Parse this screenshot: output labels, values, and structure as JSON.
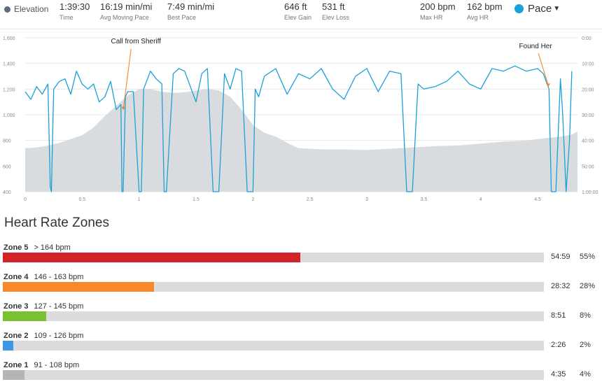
{
  "stats": {
    "elevation_label": "Elevation",
    "time_value": "1:39:30",
    "time_label": "Time",
    "avg_pace_value": "16:19 min/mi",
    "avg_pace_label": "Avg Moving Pace",
    "best_pace_value": "7:49 min/mi",
    "best_pace_label": "Best Pace",
    "elev_gain_value": "646 ft",
    "elev_gain_label": "Elev Gain",
    "elev_loss_value": "531 ft",
    "elev_loss_label": "Elev Loss",
    "max_hr_value": "200 bpm",
    "max_hr_label": "Max HR",
    "avg_hr_value": "162 bpm",
    "avg_hr_label": "Avg HR",
    "pace_selector": "Pace",
    "elevation_color": "#5b6b7c",
    "pace_color": "#1aa1d6"
  },
  "chart_data": {
    "type": "area",
    "x_ticks": [
      "0",
      "0.5",
      "1",
      "1.5",
      "2",
      "2.5",
      "3",
      "3.5",
      "4",
      "4.5"
    ],
    "xlim": [
      0,
      4.85
    ],
    "y_left_ticks": [
      "1,600",
      "1,400",
      "1,200",
      "1,000",
      "800",
      "600",
      "400"
    ],
    "ylim_left": [
      400,
      1600
    ],
    "y_right_ticks": [
      "0:00",
      "10:00",
      "20:00",
      "30:00",
      "40:00",
      "50:00",
      "1:00:00"
    ],
    "ylim_right_minutes": [
      0,
      60
    ],
    "grid": true,
    "elevation_series": {
      "name": "Elevation",
      "x": [
        0,
        0.1,
        0.2,
        0.3,
        0.4,
        0.5,
        0.6,
        0.7,
        0.8,
        0.9,
        1.0,
        1.1,
        1.2,
        1.3,
        1.4,
        1.5,
        1.6,
        1.7,
        1.8,
        1.9,
        2.0,
        2.1,
        2.2,
        2.3,
        2.4,
        2.6,
        2.8,
        3.0,
        3.2,
        3.4,
        3.6,
        3.8,
        4.0,
        4.2,
        4.4,
        4.6,
        4.7,
        4.8,
        4.85
      ],
      "y": [
        740,
        745,
        760,
        780,
        810,
        840,
        900,
        990,
        1070,
        1150,
        1200,
        1200,
        1180,
        1170,
        1175,
        1190,
        1200,
        1190,
        1140,
        1040,
        920,
        860,
        830,
        780,
        740,
        730,
        730,
        725,
        735,
        745,
        755,
        760,
        775,
        790,
        800,
        820,
        830,
        845,
        870
      ]
    },
    "pace_series": {
      "name": "Pace",
      "unit": "min/mi",
      "x": [
        0,
        0.05,
        0.1,
        0.15,
        0.2,
        0.22,
        0.23,
        0.25,
        0.3,
        0.35,
        0.4,
        0.45,
        0.5,
        0.55,
        0.6,
        0.65,
        0.7,
        0.75,
        0.8,
        0.82,
        0.84,
        0.85,
        0.86,
        0.88,
        0.9,
        0.95,
        1.0,
        1.02,
        1.04,
        1.1,
        1.15,
        1.2,
        1.22,
        1.24,
        1.3,
        1.35,
        1.4,
        1.45,
        1.5,
        1.55,
        1.6,
        1.65,
        1.7,
        1.75,
        1.8,
        1.85,
        1.9,
        1.95,
        1.98,
        2.0,
        2.02,
        2.05,
        2.1,
        2.2,
        2.3,
        2.4,
        2.5,
        2.6,
        2.7,
        2.8,
        2.9,
        3.0,
        3.1,
        3.2,
        3.3,
        3.35,
        3.4,
        3.45,
        3.5,
        3.6,
        3.7,
        3.8,
        3.9,
        4.0,
        4.1,
        4.2,
        4.3,
        4.4,
        4.5,
        4.55,
        4.6,
        4.62,
        4.64,
        4.66,
        4.7,
        4.72,
        4.75,
        4.78,
        4.8
      ],
      "y": [
        21,
        24,
        19,
        22,
        18,
        58,
        60,
        20,
        17,
        16,
        22,
        13,
        18,
        20,
        18,
        25,
        23,
        17,
        28,
        27,
        26,
        60,
        60,
        23,
        21,
        21,
        60,
        60,
        20,
        13,
        16,
        18,
        60,
        60,
        14,
        12,
        13,
        19,
        25,
        14,
        12,
        60,
        60,
        14,
        20,
        12,
        13,
        60,
        60,
        60,
        20,
        23,
        15,
        12,
        22,
        14,
        16,
        12,
        20,
        24,
        15,
        12,
        21,
        13,
        14,
        60,
        60,
        18,
        20,
        19,
        17,
        13,
        18,
        20,
        12,
        13,
        11,
        13,
        12,
        14,
        20,
        60,
        60,
        60,
        16,
        30,
        60,
        40,
        13
      ]
    },
    "annotations": [
      {
        "text": "Call from Sheriff",
        "x": 0.85,
        "pace": 29
      },
      {
        "text": "Found Her",
        "x": 4.58,
        "pace": 20
      }
    ]
  },
  "zones": {
    "title": "Heart Rate Zones",
    "items": [
      {
        "name": "Zone 5",
        "range": "> 164 bpm",
        "time": "54:59",
        "pct_label": "55%",
        "fraction": 0.55,
        "color": "#d42027"
      },
      {
        "name": "Zone 4",
        "range": "146 - 163 bpm",
        "time": "28:32",
        "pct_label": "28%",
        "fraction": 0.28,
        "color": "#f7882b"
      },
      {
        "name": "Zone 3",
        "range": "127 - 145 bpm",
        "time": "8:51",
        "pct_label": "8%",
        "fraction": 0.08,
        "color": "#7ac132"
      },
      {
        "name": "Zone 2",
        "range": "109 - 126 bpm",
        "time": "2:26",
        "pct_label": "2%",
        "fraction": 0.02,
        "color": "#3d96e6"
      },
      {
        "name": "Zone 1",
        "range": "91 - 108 bpm",
        "time": "4:35",
        "pct_label": "4%",
        "fraction": 0.04,
        "color": "#b5b5b5"
      }
    ]
  }
}
